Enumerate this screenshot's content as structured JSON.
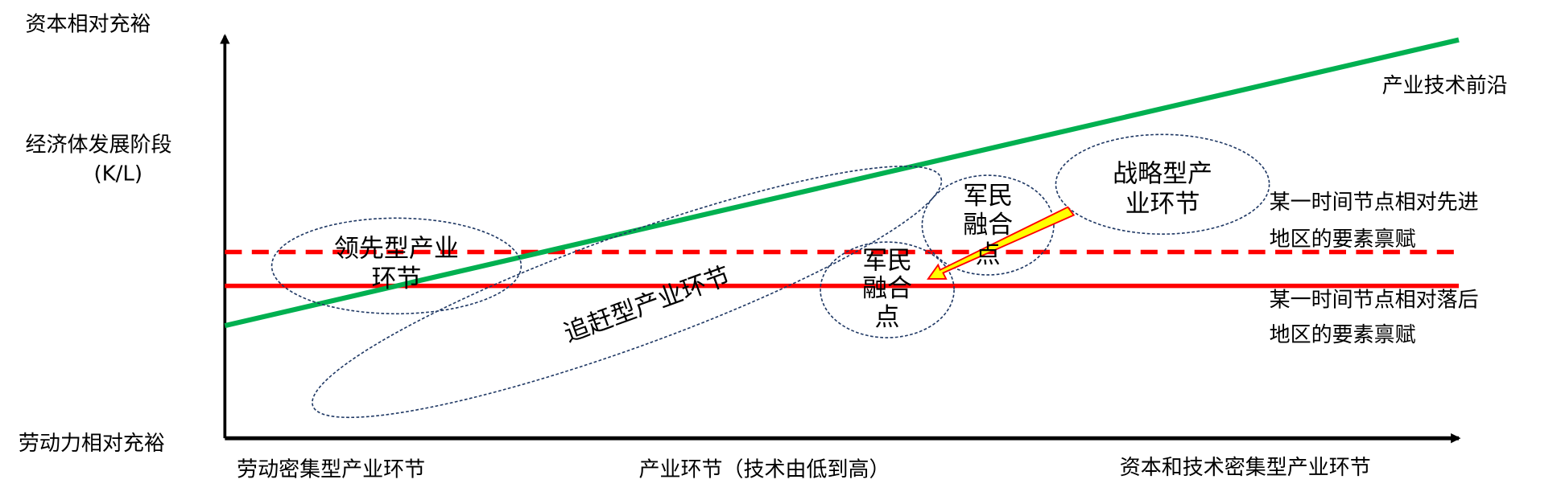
{
  "axes": {
    "y_top_label": "资本相对充裕",
    "y_mid_label": "经济体发展阶段",
    "y_mid_unit": "(K/L)",
    "y_bottom_label": "劳动力相对充裕",
    "x_left_label": "劳动密集型产业环节",
    "x_mid_label": "产业环节（技术由低到高）",
    "x_right_label": "资本和技术密集型产业环节"
  },
  "lines": {
    "frontier_label": "产业技术前沿",
    "frontier_color": "#00B050",
    "advanced_label_1": "某一时间节点相对先进",
    "advanced_label_2": "地区的要素禀赋",
    "lagging_label_1": "某一时间节点相对落后",
    "lagging_label_2": "地区的要素禀赋",
    "endowment_color": "#FF0000"
  },
  "regions": {
    "leading_1": "领先型产业",
    "leading_2": "环节",
    "catchup": "追赶型产业环节",
    "civmil_low": [
      "军民",
      "融合",
      "点"
    ],
    "civmil_high": [
      "军民",
      "融合",
      "点"
    ],
    "strategic_1": "战略型产",
    "strategic_2": "业环节",
    "ellipse_color": "#1F3864",
    "arrow_fill": "#FFFF00",
    "arrow_stroke": "#FF0000"
  }
}
